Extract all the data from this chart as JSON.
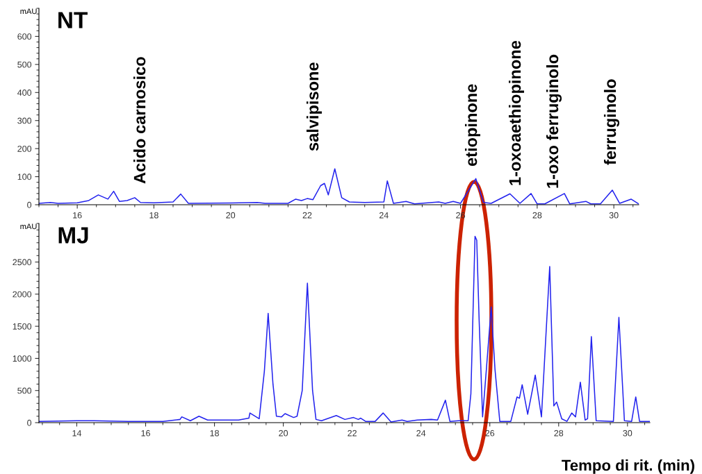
{
  "chart_data": [
    {
      "type": "line",
      "title": "NT",
      "ylabel": "mAU",
      "xlim": [
        15,
        30.65
      ],
      "ylim": [
        0,
        700
      ],
      "xticks": [
        16,
        18,
        20,
        22,
        24,
        26,
        28,
        30
      ],
      "yticks": [
        0,
        100,
        200,
        300,
        400,
        500,
        600
      ],
      "grid": false,
      "series": [
        {
          "color": "#2222ee",
          "x": [
            15.0,
            15.3,
            15.5,
            16.0,
            16.3,
            16.55,
            16.8,
            16.95,
            17.1,
            17.3,
            17.5,
            17.65,
            18.0,
            18.5,
            18.7,
            18.9,
            20.0,
            20.7,
            20.9,
            21.5,
            21.7,
            21.85,
            22.0,
            22.15,
            22.35,
            22.45,
            22.55,
            22.72,
            22.9,
            23.1,
            23.5,
            24.0,
            24.09,
            24.25,
            24.58,
            24.8,
            25.43,
            25.6,
            25.81,
            26.0,
            26.4,
            26.6,
            26.8,
            27.29,
            27.55,
            27.84,
            28.0,
            28.2,
            28.71,
            28.85,
            29.27,
            29.4,
            29.65,
            29.96,
            30.15,
            30.45,
            30.65
          ],
          "values": [
            5,
            8,
            5,
            7,
            15,
            35,
            20,
            48,
            12,
            15,
            25,
            8,
            7,
            10,
            38,
            5,
            6,
            8,
            5,
            5,
            20,
            15,
            22,
            18,
            68,
            76,
            35,
            128,
            25,
            10,
            8,
            10,
            85,
            5,
            12,
            3,
            10,
            5,
            12,
            5,
            93,
            8,
            5,
            39,
            5,
            40,
            3,
            3,
            40,
            3,
            12,
            3,
            3,
            52,
            5,
            20,
            3
          ]
        }
      ],
      "annotations": [
        "Acido carnosico",
        "salvipisone",
        "etiopinone",
        "1-oxoaethiopinone",
        "1-oxo ferruginolo",
        "ferruginolo"
      ]
    },
    {
      "type": "line",
      "title": "MJ",
      "ylabel": "mAU",
      "xlabel": "Tempo di rit. (min)",
      "xlim": [
        12.9,
        30.65
      ],
      "ylim": [
        0,
        3100
      ],
      "xticks": [
        14,
        16,
        18,
        20,
        22,
        24,
        26,
        28,
        30
      ],
      "yticks": [
        0,
        500,
        1000,
        1500,
        2000,
        2500
      ],
      "grid": false,
      "series": [
        {
          "color": "#2222ee",
          "x": [
            12.9,
            14.0,
            14.5,
            15.5,
            16.5,
            17.0,
            17.05,
            17.3,
            17.55,
            17.8,
            18.2,
            18.7,
            19.0,
            19.03,
            19.3,
            19.45,
            19.56,
            19.7,
            19.8,
            19.95,
            20.05,
            20.3,
            20.4,
            20.55,
            20.7,
            20.85,
            20.95,
            21.11,
            21.54,
            21.79,
            22.04,
            22.18,
            22.25,
            22.39,
            22.67,
            22.9,
            23.13,
            23.45,
            23.6,
            23.89,
            24.3,
            24.48,
            24.71,
            24.84,
            25.09,
            25.37,
            25.45,
            25.57,
            25.62,
            25.69,
            25.79,
            25.9,
            26.04,
            26.15,
            26.29,
            26.61,
            26.79,
            26.86,
            26.94,
            27.1,
            27.32,
            27.5,
            27.74,
            27.86,
            27.94,
            28.09,
            28.24,
            28.38,
            28.49,
            28.63,
            28.77,
            28.84,
            28.95,
            29.09,
            29.59,
            29.75,
            29.91,
            30.12,
            30.24,
            30.35,
            30.65
          ],
          "values": [
            20,
            30,
            30,
            20,
            20,
            50,
            90,
            30,
            100,
            40,
            40,
            40,
            70,
            150,
            60,
            800,
            1700,
            600,
            100,
            90,
            140,
            80,
            100,
            500,
            2170,
            500,
            50,
            30,
            110,
            50,
            80,
            50,
            70,
            20,
            20,
            150,
            10,
            40,
            20,
            40,
            50,
            40,
            350,
            20,
            30,
            30,
            450,
            2900,
            2840,
            1590,
            90,
            830,
            1800,
            830,
            20,
            20,
            400,
            380,
            590,
            130,
            740,
            90,
            2430,
            260,
            320,
            60,
            20,
            150,
            90,
            630,
            40,
            60,
            1340,
            30,
            20,
            1640,
            30,
            20,
            400,
            20,
            20
          ]
        }
      ]
    }
  ]
}
